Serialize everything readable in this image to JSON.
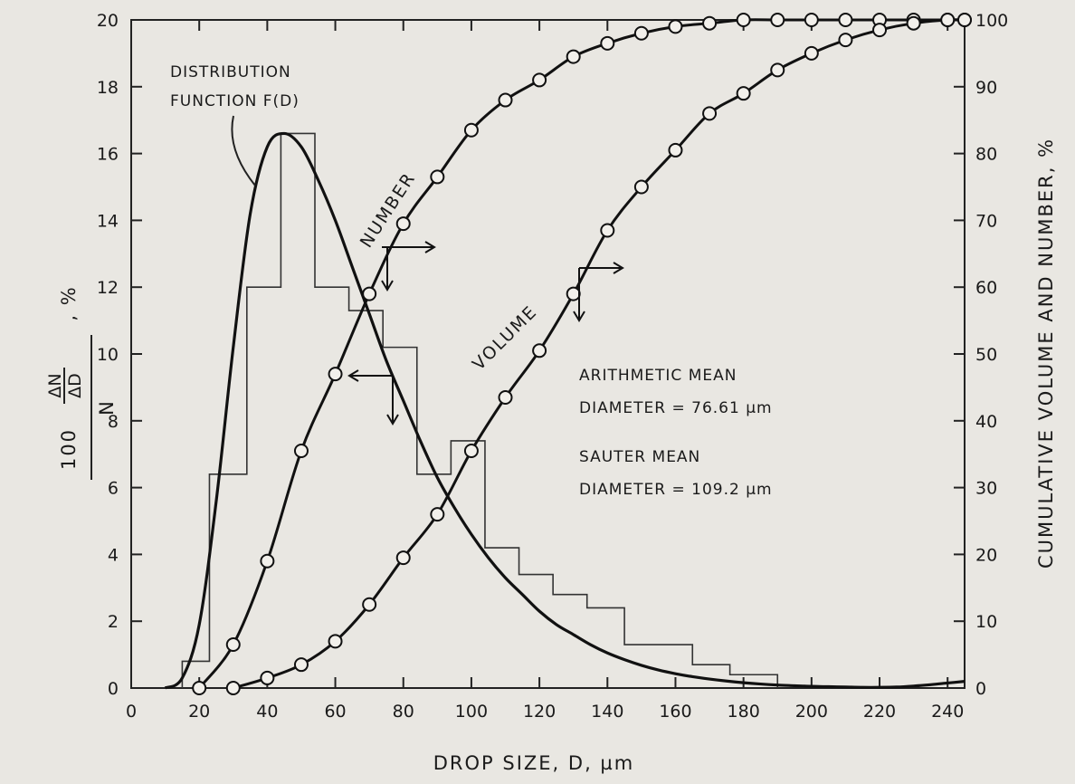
{
  "chart_data": {
    "type": "line",
    "title": "",
    "xlabel": "DROP SIZE, D, µm",
    "ylabel_left_main": "100",
    "ylabel_left_num": "ΔN",
    "ylabel_left_den": "ΔD",
    "ylabel_left_N": "N",
    "ylabel_left_unit": ", %",
    "ylabel_right": "CUMULATIVE VOLUME AND NUMBER, %",
    "xlim": [
      0,
      245
    ],
    "ylim_left": [
      0,
      20
    ],
    "ylim_right": [
      0,
      100
    ],
    "x_ticks": [
      "0",
      "20",
      "40",
      "60",
      "80",
      "100",
      "120",
      "140",
      "160",
      "180",
      "200",
      "220",
      "240"
    ],
    "y_left_ticks": [
      "0",
      "2",
      "4",
      "6",
      "8",
      "10",
      "12",
      "14",
      "16",
      "18",
      "20"
    ],
    "y_right_ticks": [
      "0",
      "10",
      "20",
      "30",
      "40",
      "50",
      "60",
      "70",
      "80",
      "90",
      "100"
    ],
    "histogram": {
      "axis": "left",
      "bins": [
        {
          "x0": 15,
          "x1": 23,
          "value": 0.8
        },
        {
          "x0": 23,
          "x1": 34,
          "value": 6.4
        },
        {
          "x0": 34,
          "x1": 44,
          "value": 12.0
        },
        {
          "x0": 44,
          "x1": 54,
          "value": 16.6
        },
        {
          "x0": 54,
          "x1": 64,
          "value": 12.0
        },
        {
          "x0": 64,
          "x1": 74,
          "value": 11.3
        },
        {
          "x0": 74,
          "x1": 84,
          "value": 10.2
        },
        {
          "x0": 84,
          "x1": 94,
          "value": 6.4
        },
        {
          "x0": 94,
          "x1": 104,
          "value": 7.4
        },
        {
          "x0": 104,
          "x1": 114,
          "value": 4.2
        },
        {
          "x0": 114,
          "x1": 124,
          "value": 3.4
        },
        {
          "x0": 124,
          "x1": 134,
          "value": 2.8
        },
        {
          "x0": 134,
          "x1": 145,
          "value": 2.4
        },
        {
          "x0": 145,
          "x1": 165,
          "value": 1.3
        },
        {
          "x0": 165,
          "x1": 176,
          "value": 0.7
        },
        {
          "x0": 176,
          "x1": 190,
          "value": 0.4
        }
      ]
    },
    "distribution_curve": {
      "axis": "left",
      "x": [
        10,
        15,
        20,
        25,
        30,
        35,
        40,
        45,
        50,
        55,
        60,
        65,
        70,
        75,
        80,
        85,
        90,
        95,
        100,
        105,
        110,
        115,
        120,
        125,
        130,
        135,
        140,
        145,
        150,
        155,
        160,
        165,
        170,
        175,
        180,
        185,
        190,
        195,
        200,
        205,
        210,
        215,
        220,
        225,
        230,
        235,
        240,
        245
      ],
      "y": [
        0,
        0.3,
        1.9,
        5.6,
        10.2,
        14.2,
        16.2,
        16.6,
        16.2,
        15.2,
        14.0,
        12.6,
        11.2,
        9.8,
        8.6,
        7.4,
        6.3,
        5.4,
        4.6,
        3.9,
        3.3,
        2.8,
        2.3,
        1.9,
        1.6,
        1.3,
        1.05,
        0.85,
        0.68,
        0.54,
        0.43,
        0.34,
        0.27,
        0.21,
        0.16,
        0.12,
        0.09,
        0.07,
        0.05,
        0.04,
        0.03,
        0.02,
        0.02,
        0.03,
        0.06,
        0.1,
        0.15,
        0.2
      ]
    },
    "series": [
      {
        "name": "NUMBER",
        "axis": "right",
        "x": [
          20,
          30,
          40,
          50,
          60,
          70,
          80,
          90,
          100,
          110,
          120,
          130,
          140,
          150,
          160,
          170,
          180,
          190,
          200,
          210,
          220,
          230,
          240,
          245
        ],
        "y": [
          0,
          6.5,
          19.0,
          35.5,
          47.0,
          59.0,
          69.5,
          76.5,
          83.5,
          88.0,
          91.0,
          94.5,
          96.5,
          98.0,
          99.0,
          99.5,
          100,
          100,
          100,
          100,
          100,
          100,
          100,
          100
        ]
      },
      {
        "name": "VOLUME",
        "axis": "right",
        "x": [
          30,
          40,
          50,
          60,
          70,
          80,
          90,
          100,
          110,
          120,
          130,
          140,
          150,
          160,
          170,
          180,
          190,
          200,
          210,
          220,
          230,
          240,
          245
        ],
        "y": [
          0,
          1.5,
          3.5,
          7.0,
          12.5,
          19.5,
          26.0,
          35.5,
          43.5,
          50.5,
          59.0,
          68.5,
          75.0,
          80.5,
          86.0,
          89.0,
          92.5,
          95.0,
          97.0,
          98.5,
          99.5,
          100,
          100
        ]
      }
    ],
    "annotations": [
      {
        "id": "dist",
        "lines": [
          "DISTRIBUTION",
          "FUNCTION  F(D)"
        ]
      },
      {
        "id": "amean",
        "lines": [
          "ARITHMETIC  MEAN",
          "DIAMETER = 76.61 µm"
        ]
      },
      {
        "id": "smean",
        "lines": [
          "SAUTER  MEAN",
          "DIAMETER = 109.2 µm"
        ]
      }
    ],
    "grid": false
  }
}
